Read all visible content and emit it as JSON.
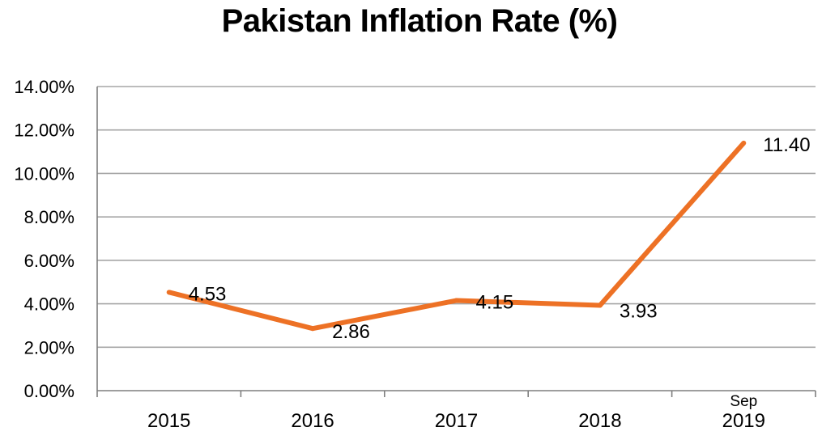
{
  "chart_data": {
    "type": "line",
    "title": "Pakistan Inflation Rate (%)",
    "xlabel": "",
    "ylabel": "",
    "categories": [
      {
        "top": "",
        "bottom": "2015"
      },
      {
        "top": "",
        "bottom": "2016"
      },
      {
        "top": "",
        "bottom": "2017"
      },
      {
        "top": "",
        "bottom": "2018"
      },
      {
        "top": "Sep",
        "bottom": "2019"
      }
    ],
    "series": [
      {
        "values": [
          4.53,
          2.86,
          4.15,
          3.93,
          11.4
        ],
        "labels": [
          "4.53",
          "2.86",
          "4.15",
          "3.93",
          "11.40"
        ],
        "color": "#ED7125"
      }
    ],
    "ylim": [
      0,
      14
    ],
    "yticks": [
      {
        "value": 0,
        "label": "0.00%"
      },
      {
        "value": 2,
        "label": "2.00%"
      },
      {
        "value": 4,
        "label": "4.00%"
      },
      {
        "value": 6,
        "label": "6.00%"
      },
      {
        "value": 8,
        "label": "8.00%"
      },
      {
        "value": 10,
        "label": "10.00%"
      },
      {
        "value": 12,
        "label": "12.00%"
      },
      {
        "value": 14,
        "label": "14.00%"
      }
    ],
    "grid": true,
    "legend": "none",
    "colors": {
      "line": "#ED7125",
      "grid": "#A6A6A6",
      "axis": "#7F7F7F"
    }
  }
}
